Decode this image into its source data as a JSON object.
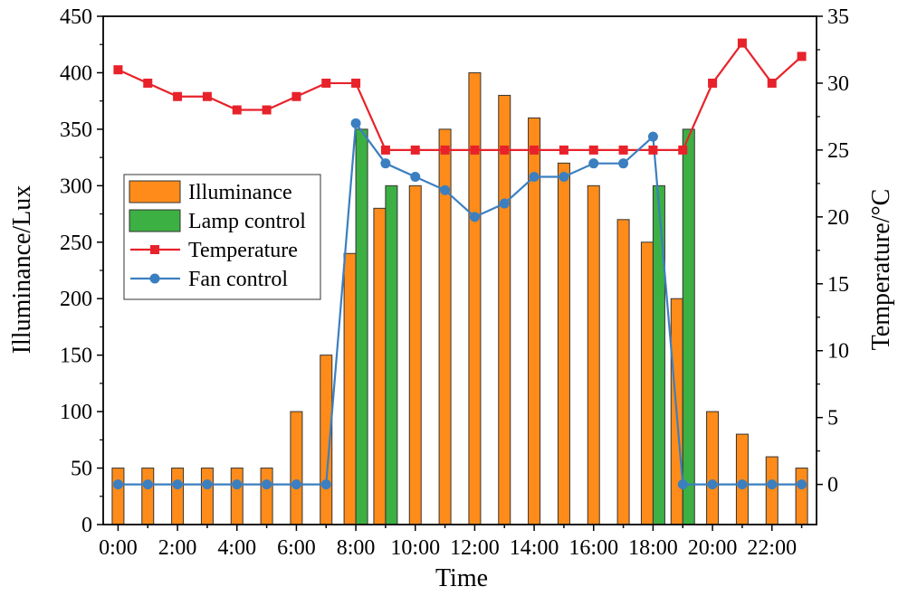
{
  "chart_data": {
    "type": "bar",
    "xlabel": "Time",
    "ylabel": "Illuminance/Lux",
    "y2label": "Temperature/°C",
    "ylim": [
      0,
      450
    ],
    "y2lim": [
      -3,
      35
    ],
    "grid": false,
    "legend_position": "left",
    "x_hours": [
      0,
      1,
      2,
      3,
      4,
      5,
      6,
      7,
      8,
      9,
      10,
      11,
      12,
      13,
      14,
      15,
      16,
      17,
      18,
      19,
      20,
      21,
      22,
      23
    ],
    "x_tick_labels": [
      "0:00",
      "2:00",
      "4:00",
      "6:00",
      "8:00",
      "10:00",
      "12:00",
      "14:00",
      "16:00",
      "18:00",
      "20:00",
      "22:00"
    ],
    "y_ticks": [
      "0",
      "50",
      "100",
      "150",
      "200",
      "250",
      "300",
      "350",
      "400",
      "450"
    ],
    "y2_ticks": [
      "0",
      "5",
      "10",
      "15",
      "20",
      "25",
      "30",
      "35"
    ],
    "series": [
      {
        "name": "Illuminance",
        "kind": "bar",
        "axis": "left",
        "color": "#FF8C1A",
        "values": [
          50,
          50,
          50,
          50,
          50,
          50,
          100,
          150,
          240,
          280,
          300,
          350,
          400,
          380,
          360,
          320,
          300,
          270,
          250,
          200,
          100,
          80,
          60,
          50
        ]
      },
      {
        "name": "Lamp control",
        "kind": "bar",
        "axis": "left",
        "color": "#3CB043",
        "values": [
          null,
          null,
          null,
          null,
          null,
          null,
          null,
          null,
          350,
          300,
          null,
          null,
          null,
          null,
          null,
          null,
          null,
          null,
          300,
          350,
          null,
          null,
          null,
          null
        ]
      },
      {
        "name": "Temperature",
        "kind": "line",
        "axis": "right",
        "color": "#E8222A",
        "marker": "square",
        "values": [
          31,
          30,
          29,
          29,
          28,
          28,
          29,
          30,
          30,
          25,
          25,
          25,
          25,
          25,
          25,
          25,
          25,
          25,
          25,
          25,
          30,
          33,
          30,
          32
        ]
      },
      {
        "name": "Fan control",
        "kind": "line",
        "axis": "right",
        "color": "#3B7FC0",
        "marker": "circle",
        "values": [
          0,
          0,
          0,
          0,
          0,
          0,
          0,
          0,
          27,
          24,
          23,
          22,
          20,
          21,
          23,
          23,
          24,
          24,
          26,
          0,
          0,
          0,
          0,
          0
        ]
      }
    ]
  }
}
